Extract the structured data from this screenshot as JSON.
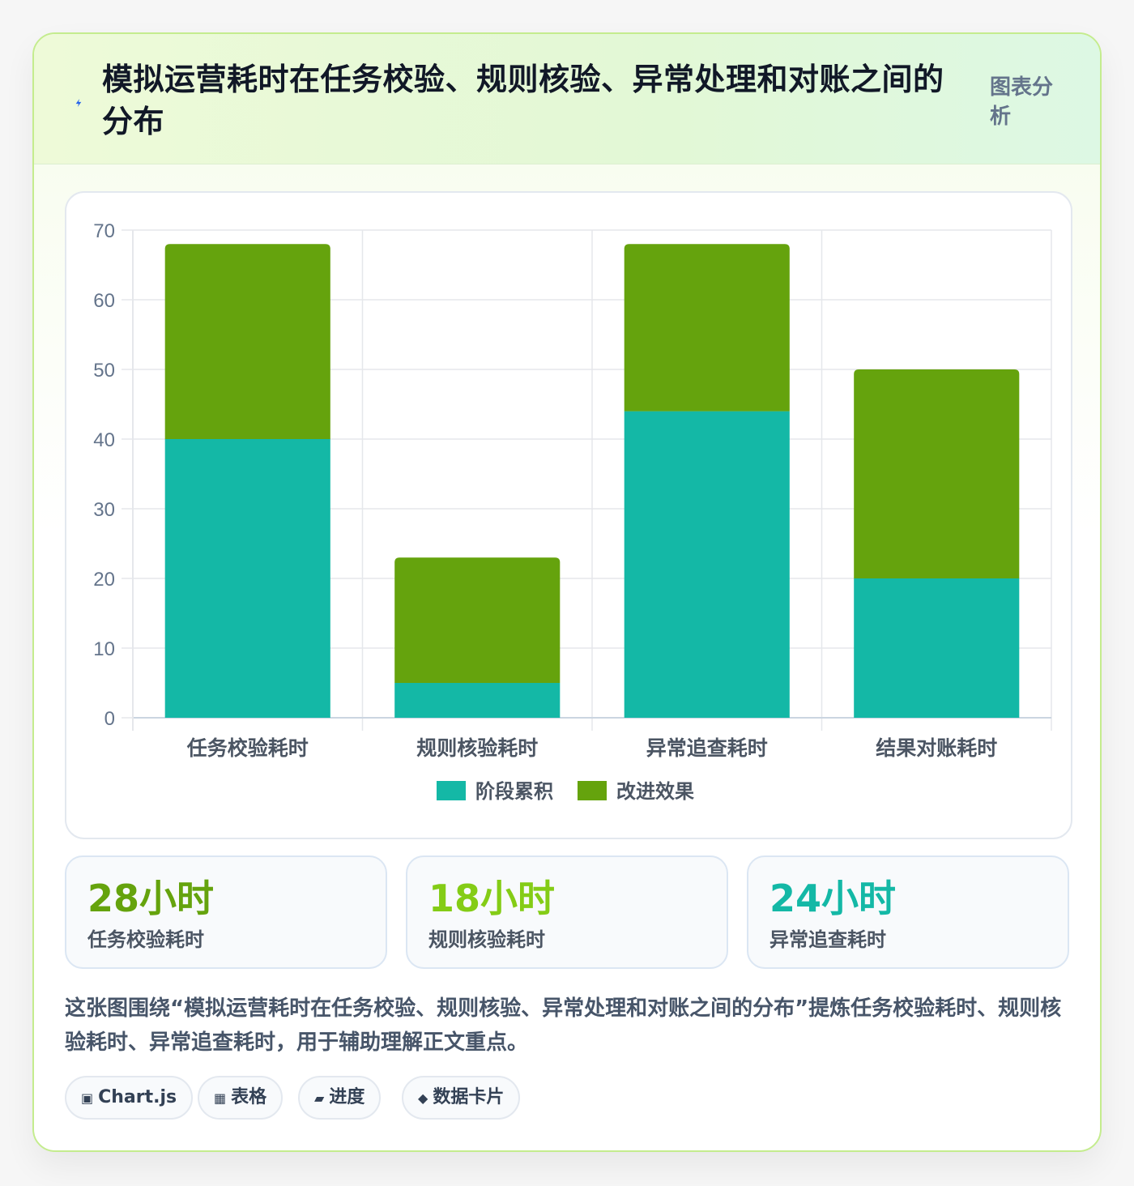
{
  "header": {
    "title": "模拟运营耗时在任务校验、规则核验、异常处理和对账之间的分布",
    "tag": "图表分析",
    "icon": "lightning-icon"
  },
  "chart_data": {
    "type": "bar",
    "stacked": true,
    "categories": [
      "任务校验耗时",
      "规则核验耗时",
      "异常追查耗时",
      "结果对账耗时"
    ],
    "series": [
      {
        "name": "阶段累积",
        "color": "#14b8a6",
        "values": [
          40,
          5,
          44,
          20
        ]
      },
      {
        "name": "改进效果",
        "color": "#65a30d",
        "values": [
          28,
          18,
          24,
          30
        ]
      }
    ],
    "ylim": [
      0,
      70
    ],
    "yticks": [
      0,
      10,
      20,
      30,
      40,
      50,
      60,
      70
    ],
    "grid": true,
    "legend": "bottom"
  },
  "stats": [
    {
      "value": "28小时",
      "label": "任务校验耗时",
      "color": "#65a30d"
    },
    {
      "value": "18小时",
      "label": "规则核验耗时",
      "color": "#84cc16"
    },
    {
      "value": "24小时",
      "label": "异常追查耗时",
      "color": "#14b8a6"
    }
  ],
  "description": "这张图围绕“模拟运营耗时在任务校验、规则核验、异常处理和对账之间的分布”提炼任务校验耗时、规则核验耗时、异常追查耗时，用于辅助理解正文重点。",
  "chips": [
    {
      "icon": "▣",
      "label": "Chart.js"
    },
    {
      "icon": "▦",
      "label": "表格"
    },
    {
      "icon": "▰",
      "label": "进度"
    },
    {
      "icon": "◆",
      "label": "数据卡片"
    }
  ]
}
